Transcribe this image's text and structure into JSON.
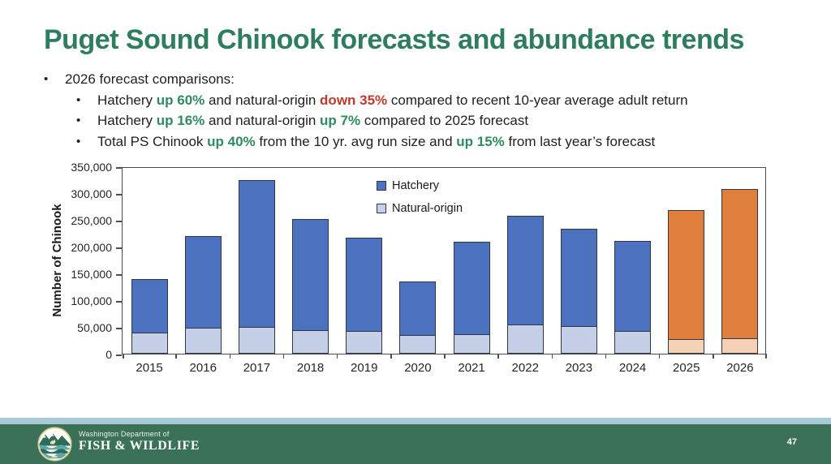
{
  "slide": {
    "title": "Puget Sound Chinook forecasts and abundance trends"
  },
  "bullets": {
    "glyph": "•",
    "level1": "2026 forecast comparisons:",
    "items": [
      {
        "segments": [
          {
            "text": "Hatchery ",
            "style": "plain"
          },
          {
            "text": "up 60%",
            "style": "green"
          },
          {
            "text": " and natural-origin ",
            "style": "plain"
          },
          {
            "text": "down 35%",
            "style": "red"
          },
          {
            "text": " compared to recent 10-year average adult return",
            "style": "plain"
          }
        ]
      },
      {
        "segments": [
          {
            "text": "Hatchery ",
            "style": "plain"
          },
          {
            "text": "up 16%",
            "style": "green"
          },
          {
            "text": " and natural-origin ",
            "style": "plain"
          },
          {
            "text": "up 7%",
            "style": "green"
          },
          {
            "text": " compared to 2025 forecast",
            "style": "plain"
          }
        ]
      },
      {
        "segments": [
          {
            "text": "Total PS Chinook ",
            "style": "plain"
          },
          {
            "text": "up 40%",
            "style": "green"
          },
          {
            "text": " from the 10 yr. avg run size and ",
            "style": "plain"
          },
          {
            "text": "up 15%",
            "style": "green"
          },
          {
            "text": " from last year’s forecast",
            "style": "plain"
          }
        ]
      }
    ]
  },
  "chart_data": {
    "type": "bar",
    "stacked": true,
    "title": "",
    "xlabel": "",
    "ylabel": "Number of Chinook",
    "ylim": [
      0,
      350000
    ],
    "ytick_step": 50000,
    "ytick_labels": [
      "0",
      "50,000",
      "100,000",
      "150,000",
      "200,000",
      "250,000",
      "300,000",
      "350,000"
    ],
    "grid": false,
    "legend_position": "inside-top-center",
    "categories": [
      "2015",
      "2016",
      "2017",
      "2018",
      "2019",
      "2020",
      "2021",
      "2022",
      "2023",
      "2024",
      "2025",
      "2026"
    ],
    "series": [
      {
        "name": "Natural-origin",
        "values": [
          40000,
          50000,
          51000,
          45000,
          44000,
          36000,
          37000,
          55000,
          52000,
          44000,
          28000,
          30000
        ]
      },
      {
        "name": "Hatchery",
        "values": [
          100000,
          170000,
          274000,
          207000,
          173000,
          99000,
          172000,
          202000,
          182000,
          167000,
          240000,
          278000
        ]
      }
    ],
    "totals": [
      140000,
      220000,
      325000,
      252000,
      217000,
      135000,
      209000,
      257000,
      234000,
      211000,
      268000,
      308000
    ],
    "forecast_years": [
      "2025",
      "2026"
    ],
    "legend": [
      {
        "label": "Hatchery",
        "swatch": "hatchery"
      },
      {
        "label": "Natural-origin",
        "swatch": "natural"
      }
    ]
  },
  "colors": {
    "title_green": "#2E7D5C",
    "text_green": "#2E8A5F",
    "text_red": "#C0392B",
    "hatchery_blue": "#4C71BE",
    "natural_blue": "#C5CFE8",
    "hatchery_forecast_orange": "#E07E3C",
    "natural_forecast_peach": "#F5D2B5",
    "bar_border": "#2F3644",
    "footer_green": "#3B7158",
    "footer_strip_blue": "#A8CAD7"
  },
  "footer": {
    "org_line1": "Washington Department of",
    "org_line2": "FISH & WILDLIFE",
    "page_number": "47"
  }
}
